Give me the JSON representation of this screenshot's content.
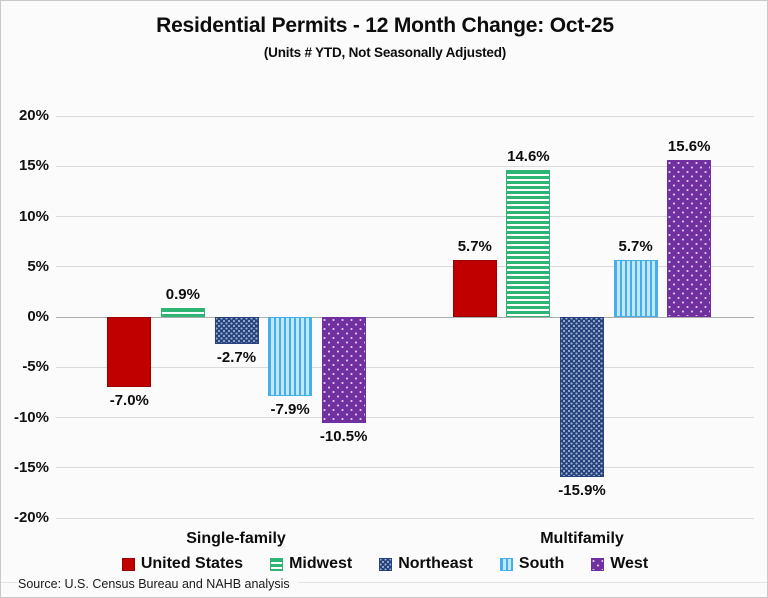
{
  "title": "Residential Permits - 12 Month Change:  Oct-25",
  "subtitle": "(Units # YTD, Not Seasonally Adjusted)",
  "source": "Source: U.S. Census Bureau and NAHB analysis",
  "chart_data": {
    "type": "bar",
    "categories": [
      "Single-family",
      "Multifamily"
    ],
    "series": [
      {
        "name": "United States",
        "values": [
          -7.0,
          5.7
        ],
        "labels": [
          "-7.0%",
          "5.7%"
        ],
        "color": "#C00000",
        "color2": "#C00000",
        "pattern": "solid"
      },
      {
        "name": "Midwest",
        "values": [
          0.9,
          14.6
        ],
        "labels": [
          "0.9%",
          "14.6%"
        ],
        "color": "#2FB573",
        "color2": "#FFFFFF",
        "pattern": "horizontal-stripes"
      },
      {
        "name": "Northeast",
        "values": [
          -2.7,
          -15.9
        ],
        "labels": [
          "-2.7%",
          "-15.9%"
        ],
        "color": "#27437D",
        "color2": "#9FB1D4",
        "pattern": "checker-dots"
      },
      {
        "name": "South",
        "values": [
          -7.9,
          5.7
        ],
        "labels": [
          "-7.9%",
          "5.7%"
        ],
        "color": "#45AFE9",
        "color2": "#C2E6FA",
        "pattern": "vertical-stripes"
      },
      {
        "name": "West",
        "values": [
          -10.5,
          15.6
        ],
        "labels": [
          "-10.5%",
          "15.6%"
        ],
        "color": "#7030A0",
        "color2": "#DCC9EE",
        "pattern": "dots"
      }
    ],
    "ylim": [
      -20,
      20
    ],
    "ytick_step": 5,
    "yticks": [
      "20%",
      "15%",
      "10%",
      "5%",
      "0%",
      "-5%",
      "-10%",
      "-15%",
      "-20%"
    ],
    "grid": true,
    "legend_position": "bottom",
    "data_labels": true
  }
}
